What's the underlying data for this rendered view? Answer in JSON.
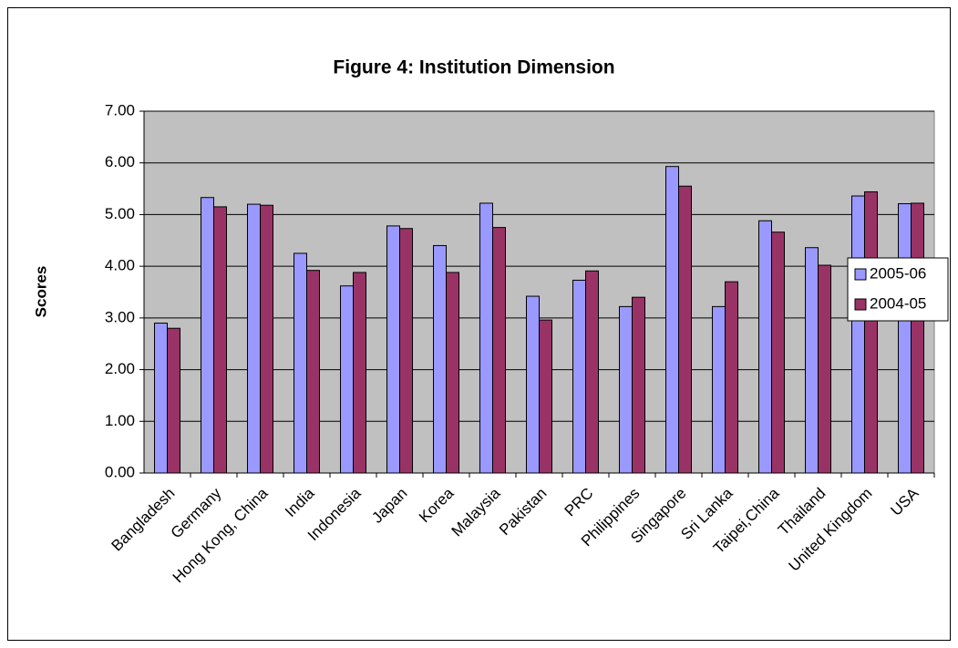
{
  "chart_data": {
    "type": "bar",
    "title": "Figure 4: Institution Dimension",
    "y_label": "Scores",
    "categories": [
      "Bangladesh",
      "Germany",
      "Hong Kong, China",
      "India",
      "Indonesia",
      "Japan",
      "Korea",
      "Malaysia",
      "Pakistan",
      "PRC",
      "Philippines",
      "Singapore",
      "Sri Lanka",
      "Taipei,China",
      "Thailand",
      "United Kingdom",
      "USA"
    ],
    "series": [
      {
        "name": "2005-06",
        "color": "#9999ff",
        "values": [
          2.9,
          5.33,
          5.2,
          4.25,
          3.62,
          4.78,
          4.4,
          5.22,
          3.42,
          3.73,
          3.22,
          5.93,
          3.22,
          4.88,
          4.36,
          5.36,
          5.21
        ]
      },
      {
        "name": "2004-05",
        "color": "#993366",
        "values": [
          2.8,
          5.15,
          5.18,
          3.92,
          3.88,
          4.73,
          3.88,
          4.75,
          2.96,
          3.91,
          3.4,
          5.55,
          3.7,
          4.66,
          4.02,
          5.44,
          5.22
        ]
      }
    ],
    "ylim": [
      0,
      7
    ],
    "yticks": [
      {
        "value": 0,
        "label": "0.00"
      },
      {
        "value": 1,
        "label": "1.00"
      },
      {
        "value": 2,
        "label": "2.00"
      },
      {
        "value": 3,
        "label": "3.00"
      },
      {
        "value": 4,
        "label": "4.00"
      },
      {
        "value": 5,
        "label": "5.00"
      },
      {
        "value": 6,
        "label": "6.00"
      },
      {
        "value": 7,
        "label": "7.00"
      }
    ],
    "grid": true,
    "legend": "right",
    "plot_background": "#c0c0c0"
  }
}
